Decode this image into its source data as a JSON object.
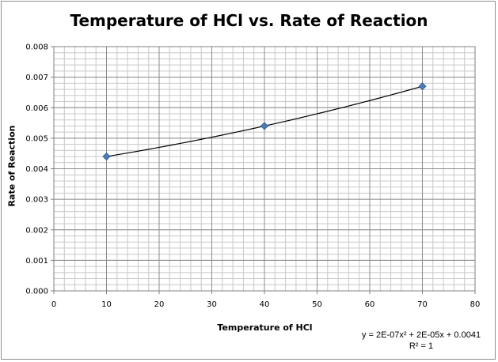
{
  "chart_data": {
    "type": "scatter",
    "title": "Temperature of HCl vs. Rate of Reaction",
    "xlabel": "Temperature of HCl",
    "ylabel": "Rate of Reaction",
    "xlim": [
      0,
      80
    ],
    "ylim": [
      0,
      0.008
    ],
    "x_ticks": [
      0,
      10,
      20,
      30,
      40,
      50,
      60,
      70,
      80
    ],
    "y_ticks": [
      "0.000",
      "0.001",
      "0.002",
      "0.003",
      "0.004",
      "0.005",
      "0.006",
      "0.007",
      "0.008"
    ],
    "grid": true,
    "legend": "none",
    "series": [
      {
        "x": [
          10,
          40,
          70
        ],
        "y": [
          0.0044,
          0.0054,
          0.0067
        ],
        "marker": "diamond",
        "color": "#4a7ebb"
      }
    ],
    "trendline": {
      "type": "polynomial",
      "color": "#000000",
      "equation": "y = 2E-07x² + 2E-05x + 0.0041",
      "r_squared": "R² = 1"
    }
  }
}
